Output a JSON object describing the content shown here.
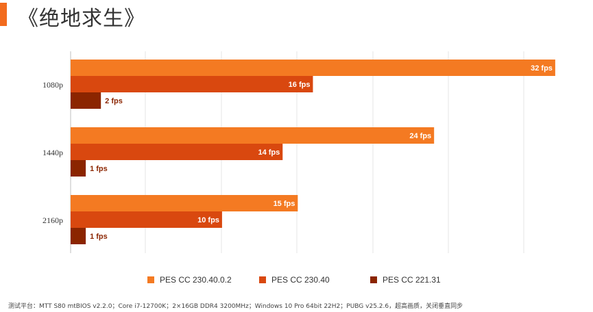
{
  "header": {
    "title": "《绝地求生》",
    "accent_color": "#F26B1D"
  },
  "chart_data": {
    "type": "bar",
    "orientation": "horizontal",
    "title": "《绝地求生》",
    "categories": [
      "1080p",
      "1440p",
      "2160p"
    ],
    "series": [
      {
        "name": "PES CC 230.40.0.2",
        "color": "#F47A22",
        "values": [
          32,
          24,
          15
        ],
        "labels": [
          "32 fps",
          "24 fps",
          "15 fps"
        ]
      },
      {
        "name": "PES CC 230.40",
        "color": "#D9480F",
        "values": [
          16,
          14,
          10
        ],
        "labels": [
          "16 fps",
          "14 fps",
          "10 fps"
        ]
      },
      {
        "name": "PES CC 221.31",
        "color": "#8B2500",
        "values": [
          2,
          1,
          1
        ],
        "labels": [
          "2 fps",
          "1 fps",
          "1 fps"
        ]
      }
    ],
    "xlim": [
      0,
      33
    ],
    "grid": true,
    "legend_position": "bottom"
  },
  "footnote": "测试平台：MTT S80 mtBIOS v2.2.0；Core i7-12700K；2×16GB DDR4 3200MHz；Windows 10 Pro 64bit 22H2；PUBG v25.2.6，超高画质，关闭垂直同步"
}
